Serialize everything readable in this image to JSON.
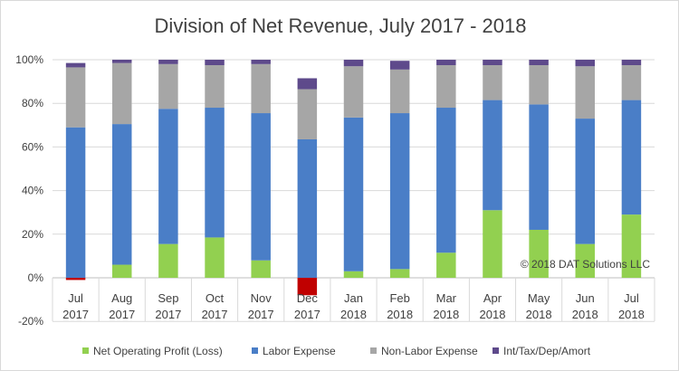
{
  "chart_data": {
    "type": "bar",
    "stacked": true,
    "title": "Division of Net Revenue, July 2017 - 2018",
    "annotation": "© 2018 DAT Solutions LLC",
    "categories": [
      [
        "Jul",
        "2017"
      ],
      [
        "Aug",
        "2017"
      ],
      [
        "Sep",
        "2017"
      ],
      [
        "Oct",
        "2017"
      ],
      [
        "Nov",
        "2017"
      ],
      [
        "Dec",
        "2017"
      ],
      [
        "Jan",
        "2018"
      ],
      [
        "Feb",
        "2018"
      ],
      [
        "Mar",
        "2018"
      ],
      [
        "Apr",
        "2018"
      ],
      [
        "May",
        "2018"
      ],
      [
        "Jun",
        "2018"
      ],
      [
        "Jul",
        "2018"
      ]
    ],
    "ylim": [
      -20,
      100
    ],
    "yticks": [
      -20,
      0,
      20,
      40,
      60,
      80,
      100
    ],
    "ytick_labels": [
      "-20%",
      "0%",
      "20%",
      "40%",
      "60%",
      "80%",
      "100%"
    ],
    "grid": true,
    "legend_position": "bottom",
    "series": [
      {
        "name": "Net Operating Profit (Loss)",
        "color": "#92d050",
        "negative_color": "#c00000",
        "values": [
          -1,
          6,
          15.5,
          18.5,
          8,
          -8,
          3,
          4,
          11.5,
          31,
          22,
          15.5,
          29
        ]
      },
      {
        "name": "Labor Expense",
        "color": "#4a7ec7",
        "values": [
          69,
          64.5,
          62,
          59.5,
          67.5,
          63.5,
          70.5,
          71.5,
          66.5,
          50.5,
          57.5,
          57.5,
          52.5
        ]
      },
      {
        "name": "Non-Labor Expense",
        "color": "#a6a6a6",
        "values": [
          27.5,
          28,
          20.5,
          19.5,
          22.5,
          23,
          23.5,
          20,
          19.5,
          16,
          18,
          24,
          16
        ]
      },
      {
        "name": "Int/Tax/Dep/Amort",
        "color": "#5e4a8b",
        "values": [
          2,
          1.5,
          2,
          2.5,
          2,
          5,
          3,
          4,
          2.5,
          2.5,
          2.5,
          3,
          2.5
        ]
      }
    ]
  }
}
